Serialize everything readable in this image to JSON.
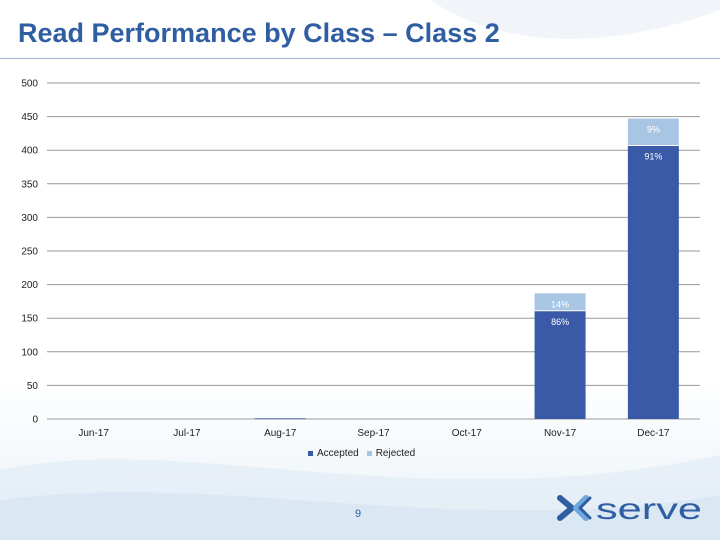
{
  "slide": {
    "title": "Read Performance by Class – Class 2",
    "page_number": "9",
    "logo_text": "xoserve"
  },
  "colors": {
    "accepted": "#3a5aa8",
    "rejected": "#a9c5e4",
    "title": "#2f5ea2"
  },
  "chart_data": {
    "type": "bar",
    "stacked": true,
    "categories": [
      "Jun-17",
      "Jul-17",
      "Aug-17",
      "Sep-17",
      "Oct-17",
      "Nov-17",
      "Dec-17"
    ],
    "series": [
      {
        "name": "Accepted",
        "values": [
          0,
          0,
          1,
          0,
          0,
          161,
          407
        ]
      },
      {
        "name": "Rejected",
        "values": [
          0,
          0,
          0,
          0,
          0,
          26,
          40
        ]
      }
    ],
    "data_labels": [
      {
        "category": "Nov-17",
        "series": "Accepted",
        "text": "86%"
      },
      {
        "category": "Nov-17",
        "series": "Rejected",
        "text": "14%"
      },
      {
        "category": "Dec-17",
        "series": "Accepted",
        "text": "91%"
      },
      {
        "category": "Dec-17",
        "series": "Rejected",
        "text": "9%"
      }
    ],
    "yticks": [
      0,
      50,
      100,
      150,
      200,
      250,
      300,
      350,
      400,
      450,
      500
    ],
    "ylim": [
      0,
      500
    ],
    "grid": true,
    "legend": "bottom",
    "title": "",
    "xlabel": "",
    "ylabel": ""
  }
}
